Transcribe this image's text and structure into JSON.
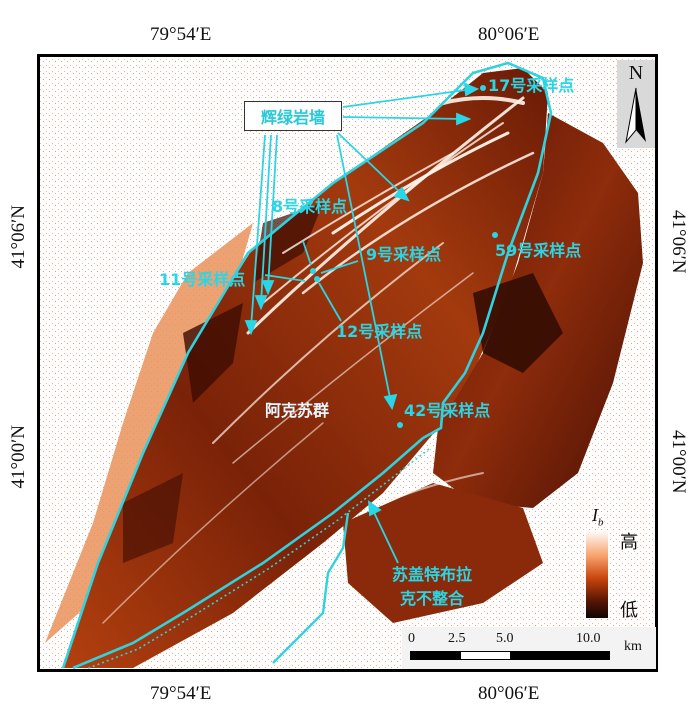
{
  "coordinates": {
    "top": [
      "79°54′E",
      "80°06′E"
    ],
    "bottom": [
      "79°54′E",
      "80°06′E"
    ],
    "left": [
      "41°06′N",
      "41°00′N"
    ],
    "right": [
      "41°06′N",
      "41°00′N"
    ]
  },
  "north_arrow": {
    "label": "N"
  },
  "labels": {
    "dyke": "辉绿岩墙",
    "sample_17": "17号采样点",
    "sample_8": "8号采样点",
    "sample_9": "9号采样点",
    "sample_59": "59号采样点",
    "sample_11": "11号采样点",
    "sample_12": "12号采样点",
    "sample_42": "42号采样点",
    "group": "阿克苏群",
    "unconformity_line1": "苏盖特布拉",
    "unconformity_line2": "克不整合"
  },
  "legend": {
    "symbol": "I",
    "subscript": "b",
    "high": "高",
    "low": "低",
    "colors": [
      "#ffffff",
      "#f6a06a",
      "#c8450e",
      "#5a1605",
      "#100403"
    ]
  },
  "scale_bar": {
    "ticks": [
      "0",
      "2.5",
      "5.0",
      "10.0"
    ],
    "unit": "km"
  },
  "colors": {
    "annotation": "#29d6e6",
    "boundary": "#2fd3e0"
  }
}
